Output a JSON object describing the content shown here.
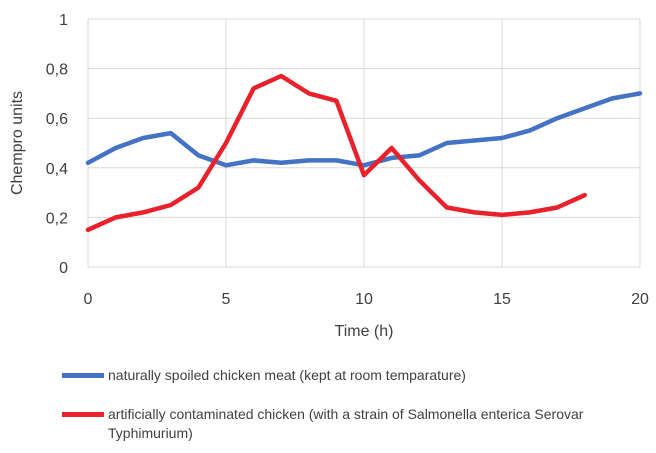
{
  "chart_data": {
    "type": "line",
    "title": "",
    "xlabel": "Time (h)",
    "ylabel": "Chempro units",
    "xlim": [
      0,
      20
    ],
    "ylim": [
      0,
      1
    ],
    "xticks": [
      0,
      5,
      10,
      15,
      20
    ],
    "xtick_labels": [
      "0",
      "5",
      "10",
      "15",
      "20"
    ],
    "yticks": [
      0,
      0.2,
      0.4,
      0.6,
      0.8,
      1
    ],
    "ytick_labels": [
      "0",
      "0,2",
      "0,4",
      "0,6",
      "0,8",
      "1"
    ],
    "grid": true,
    "legend_position": "bottom",
    "series": [
      {
        "name": "naturally spoiled chicken meat (kept at room temparature)",
        "color": "#4472C4",
        "x": [
          0,
          1,
          2,
          3,
          4,
          5,
          6,
          7,
          8,
          9,
          10,
          11,
          12,
          13,
          14,
          15,
          16,
          17,
          18,
          19,
          20
        ],
        "y": [
          0.42,
          0.48,
          0.52,
          0.54,
          0.45,
          0.41,
          0.43,
          0.42,
          0.43,
          0.43,
          0.41,
          0.44,
          0.45,
          0.5,
          0.51,
          0.52,
          0.55,
          0.6,
          0.64,
          0.68,
          0.7
        ]
      },
      {
        "name": "artificially contaminated chicken (with a strain of Salmonella enterica Serovar Typhimurium)",
        "color": "#E8212B",
        "x": [
          0,
          1,
          2,
          3,
          4,
          5,
          6,
          7,
          8,
          9,
          10,
          11,
          12,
          13,
          14,
          15,
          16,
          17,
          18
        ],
        "y": [
          0.15,
          0.2,
          0.22,
          0.25,
          0.32,
          0.5,
          0.72,
          0.77,
          0.7,
          0.67,
          0.37,
          0.48,
          0.35,
          0.24,
          0.22,
          0.21,
          0.22,
          0.24,
          0.29
        ]
      }
    ]
  }
}
